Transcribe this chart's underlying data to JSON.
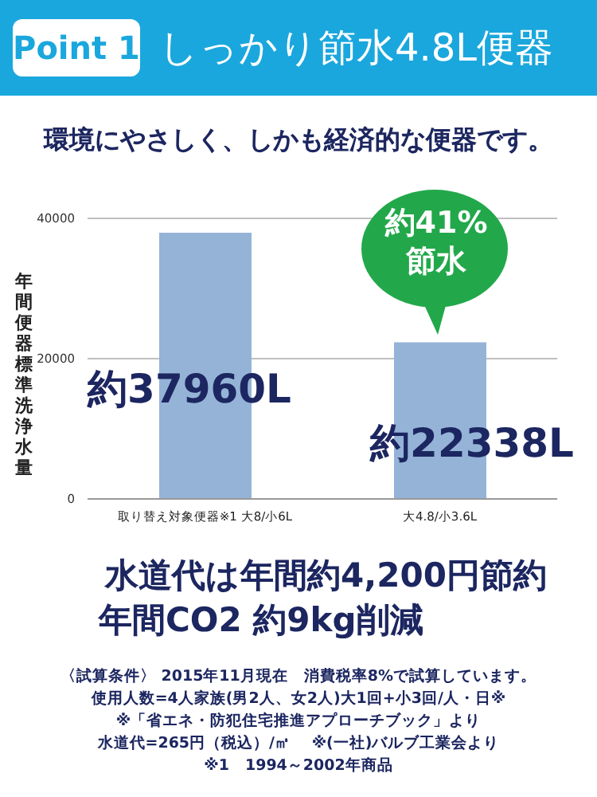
{
  "chart_data": {
    "type": "bar",
    "title": "しっかり節水4.8L便器",
    "subtitle": "環境にやさしく、しかも経済的な便器です。",
    "ylabel": "年間便器標準洗浄水量",
    "categories": [
      "取り替え対象便器※1 大8/小6L",
      "大4.8/小3.6L"
    ],
    "values": [
      37960,
      22338
    ],
    "color": "#95b3d7",
    "value_labels": [
      "約37960L",
      "約22338L"
    ],
    "ylim": [
      0,
      40000
    ],
    "yticks": [
      0,
      20000,
      40000
    ],
    "grid": "y",
    "annotations": [
      "Point 1",
      "約41%",
      "節水",
      "水道代は年間約4,200円節約",
      "年間CO2 約9kg削減",
      "〈試算条件〉 2015年11月現在　消費税率8%で試算しています。",
      "使用人数=4人家族(男2人、女2人)大1回+小3回/人・日※",
      "※「省エネ・防犯住宅推進アプローチブック」より",
      "水道代=265円（税込）/㎥　 ※(一社)バルブ工業会より",
      "※1　1994～2002年商品"
    ]
  }
}
